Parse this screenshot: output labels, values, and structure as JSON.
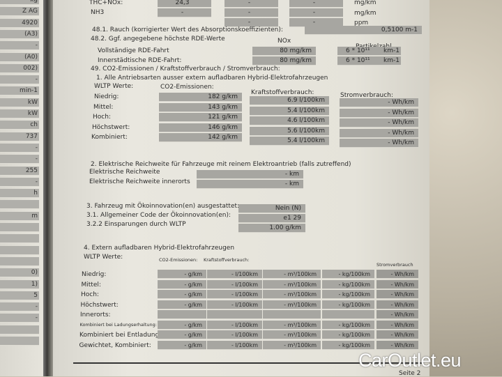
{
  "left_page": {
    "cells": [
      "kg",
      "Z AG",
      "4920",
      "(A3)",
      "-",
      "(A0)",
      "002)",
      "-",
      "min-1",
      "kW",
      "kW",
      "ch",
      "737",
      "-",
      "-",
      "255",
      "-",
      "h",
      "",
      "m",
      "",
      "",
      "",
      "",
      "0)",
      "1)",
      "5",
      "-",
      "-",
      "",
      ""
    ]
  },
  "top": {
    "thc_label": "THC+NOx:",
    "thc_values": [
      "24,3",
      "-",
      "-"
    ],
    "thc_unit": "mg/km",
    "nh3_label": "NH3",
    "nh3_values": [
      "-",
      "-",
      "-"
    ],
    "nh3_unit": "mg/km",
    "ppm_values": [
      "-",
      "-"
    ],
    "ppm_unit": "ppm"
  },
  "s48_1": {
    "label": "48.1. Rauch (korrigierter Wert des Absorptionskoeffizienten):",
    "value": "0,5100  m-1"
  },
  "s48_2": {
    "label": "48.2. Ggf. angegebene höchste RDE-Werte",
    "nox_header": "NOx",
    "pn_header": "Partikelzahl",
    "rows": [
      {
        "label": "Vollständige RDE-Fahrt",
        "nox": "80  mg/km",
        "pn": "6 * 10¹¹",
        "pn_unit": "km-1"
      },
      {
        "label": "Innerstädtische RDE-Fahrt:",
        "nox": "80  mg/km",
        "pn": "6 * 10¹¹",
        "pn_unit": "km-1"
      }
    ]
  },
  "s49": {
    "title": "49. CO2-Emissionen / Kraftstoffverbrauch / Stromverbrauch:",
    "sub1": {
      "title": "1. Alle Antriebsarten ausser extern aufladbaren Hybrid-Elektrofahrzeugen",
      "wltp": "WLTP Werte:",
      "co2_header": "CO2-Emissionen:",
      "fuel_header": "Kraftstoffverbrauch:",
      "power_header": "Stromverbrauch:",
      "rows": [
        {
          "label": "Niedrig:",
          "co2": "182  g/km",
          "fuel": "6.9     l/100km",
          "power": "-   Wh/km"
        },
        {
          "label": "Mittel:",
          "co2": "143  g/km",
          "fuel": "5.4     l/100km",
          "power": "-   Wh/km"
        },
        {
          "label": "Hoch:",
          "co2": "121  g/km",
          "fuel": "4.6     l/100km",
          "power": "-   Wh/km"
        },
        {
          "label": "Höchstwert:",
          "co2": "146  g/km",
          "fuel": "5.6     l/100km",
          "power": "-   Wh/km"
        },
        {
          "label": "Kombiniert:",
          "co2": "142  g/km",
          "fuel": "5.4     l/100km",
          "power": "-   Wh/km"
        }
      ]
    },
    "sub2": {
      "title": "2. Elektrische Reichweite für Fahrzeuge mit reinem Elektroantrieb (falls zutreffend)",
      "rows": [
        {
          "label": "Elektrische Reichweite",
          "value": "-   km"
        },
        {
          "label": "Elektrische Reichweite innerorts",
          "value": "-   km"
        }
      ]
    },
    "sub3": {
      "rows": [
        {
          "label": "3. Fahrzeug mit Ökoinnovation(en) ausgestattet:",
          "value": "Nein (N)"
        },
        {
          "label": "3.1. Allgemeiner Code der Ökoinnovation(en):",
          "value": "e1 29"
        },
        {
          "label": "3.2.2 Einsparungen durch WLTP",
          "value": "1.00    g/km"
        }
      ]
    },
    "sub4": {
      "title": "4. Extern aufladbaren Hybrid-Elektrofahrzeugen",
      "wltp": "WLTP Werte:",
      "co2_header": "CO2-Emissionen:",
      "fuel_header": "Kraftstoffverbrauch:",
      "power_header": "Stromverbrauch",
      "rows": [
        {
          "label": "Niedrig:",
          "cells": [
            "- g/km",
            "- l/100km",
            "- m³/100km",
            "- kg/100km",
            "- Wh/km"
          ]
        },
        {
          "label": "Mittel:",
          "cells": [
            "- g/km",
            "- l/100km",
            "- m³/100km",
            "- kg/100km",
            "- Wh/km"
          ]
        },
        {
          "label": "Hoch:",
          "cells": [
            "- g/km",
            "- l/100km",
            "- m³/100km",
            "- kg/100km",
            "- Wh/km"
          ]
        },
        {
          "label": "Höchstwert:",
          "cells": [
            "- g/km",
            "- l/100km",
            "- m³/100km",
            "- kg/100km",
            "- Wh/km"
          ]
        },
        {
          "label": "Innerorts:",
          "cells": [
            "",
            "",
            "",
            "",
            "- Wh/km"
          ]
        },
        {
          "label": "Kombiniert bei Ladungserhaltung:",
          "small": true,
          "cells": [
            "- g/km",
            "- l/100km",
            "- m³/100km",
            "- kg/100km",
            "- Wh/km"
          ]
        },
        {
          "label": "Kombiniert bei Entladung:",
          "cells": [
            "- g/km",
            "- l/100km",
            "- m³/100km",
            "- kg/100km",
            "- Wh/km"
          ]
        },
        {
          "label": "Gewichtet, Kombiniert:",
          "cells": [
            "- g/km",
            "- l/100km",
            "- m³/100km",
            "- kg/100km",
            "- Wh/km"
          ]
        }
      ]
    }
  },
  "footer": {
    "page": "Seite 2"
  },
  "watermark": "CarOutlet.eu"
}
